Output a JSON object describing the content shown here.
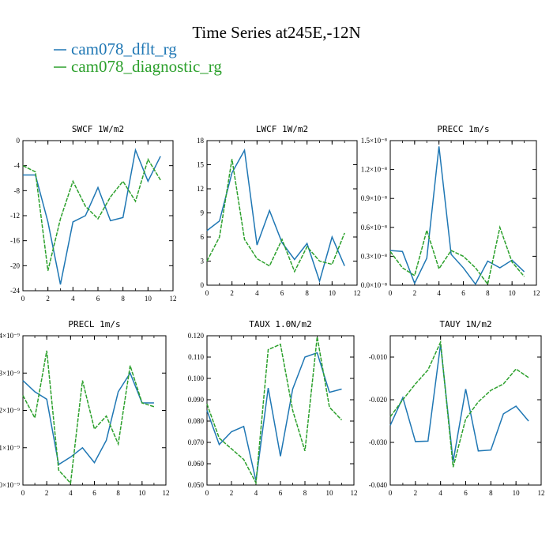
{
  "figure": {
    "title": "Time Series at245E,-12N",
    "legend": [
      {
        "label": "cam078_dflt_rg",
        "color": "#1f77b4"
      },
      {
        "label": "cam078_diagnostic_rg",
        "color": "#2ca02c"
      }
    ]
  },
  "chart_data": [
    {
      "type": "line",
      "title": "SWCF   1W/m2",
      "x": [
        0,
        1,
        2,
        3,
        4,
        5,
        6,
        7,
        8,
        9,
        10,
        11
      ],
      "xlim": [
        0,
        12
      ],
      "ylim": [
        -24,
        0
      ],
      "xticks": [
        "0",
        "2",
        "4",
        "6",
        "8",
        "10",
        "12"
      ],
      "yticks": [
        "0",
        "-4",
        "-8",
        "-12",
        "-16",
        "-20",
        "-24"
      ],
      "series": [
        {
          "name": "cam078_dflt_rg",
          "color": "#1f77b4",
          "dashed": false,
          "values": [
            -5.5,
            -5.5,
            -13,
            -23,
            -13,
            -12,
            -7.5,
            -12.8,
            -12.3,
            -1.5,
            -6.5,
            -2.5
          ]
        },
        {
          "name": "cam078_diagnostic_rg",
          "color": "#2ca02c",
          "dashed": true,
          "values": [
            -4,
            -5,
            -20.8,
            -12.5,
            -6.5,
            -10.5,
            -12.5,
            -9,
            -6.5,
            -9.7,
            -3,
            -6.3
          ]
        }
      ]
    },
    {
      "type": "line",
      "title": "LWCF   1W/m2",
      "x": [
        0,
        1,
        2,
        3,
        4,
        5,
        6,
        7,
        8,
        9,
        10,
        11
      ],
      "xlim": [
        0,
        12
      ],
      "ylim": [
        0,
        18
      ],
      "xticks": [
        "0",
        "2",
        "4",
        "6",
        "8",
        "10",
        "12"
      ],
      "yticks": [
        "0",
        "3",
        "6",
        "9",
        "12",
        "15",
        "18"
      ],
      "series": [
        {
          "name": "cam078_dflt_rg",
          "color": "#1f77b4",
          "dashed": false,
          "values": [
            6.8,
            8,
            14,
            16.8,
            5,
            9.3,
            5.3,
            3.2,
            5.2,
            0.5,
            6,
            2.4
          ]
        },
        {
          "name": "cam078_diagnostic_rg",
          "color": "#2ca02c",
          "dashed": true,
          "values": [
            3,
            6,
            15.7,
            5.7,
            3.3,
            2.4,
            5.7,
            1.7,
            4.8,
            3,
            2.6,
            6.5
          ]
        }
      ]
    },
    {
      "type": "line",
      "title": "PRECC   1m/s",
      "x": [
        0,
        1,
        2,
        3,
        4,
        5,
        6,
        7,
        8,
        9,
        10,
        11
      ],
      "xlim": [
        0,
        12
      ],
      "ylim": [
        0,
        1.5
      ],
      "yscale_label": "×10⁻⁸",
      "xticks": [
        "0",
        "2",
        "4",
        "6",
        "8",
        "10",
        "12"
      ],
      "yticks": [
        "0.0×10⁻⁸",
        "0.3×10⁻⁸",
        "0.6×10⁻⁸",
        "0.9×10⁻⁸",
        "1.2×10⁻⁸",
        "1.5×10⁻⁸"
      ],
      "series": [
        {
          "name": "cam078_dflt_rg",
          "color": "#1f77b4",
          "dashed": false,
          "values": [
            0.36,
            0.35,
            0.02,
            0.28,
            1.44,
            0.32,
            0.18,
            0.01,
            0.25,
            0.18,
            0.26,
            0.14
          ]
        },
        {
          "name": "cam078_diagnostic_rg",
          "color": "#2ca02c",
          "dashed": true,
          "values": [
            0.35,
            0.18,
            0.1,
            0.57,
            0.17,
            0.36,
            0.3,
            0.18,
            0.01,
            0.6,
            0.24,
            0.09
          ]
        }
      ]
    },
    {
      "type": "line",
      "title": "PRECL   1m/s",
      "x": [
        0,
        1,
        2,
        3,
        4,
        5,
        6,
        7,
        8,
        9,
        10,
        11
      ],
      "xlim": [
        0,
        12
      ],
      "ylim": [
        0,
        4
      ],
      "xticks": [
        "0",
        "2",
        "4",
        "6",
        "8",
        "10",
        "12"
      ],
      "yticks": [
        "0×10⁻⁹",
        "1×10⁻⁹",
        "2×10⁻⁹",
        "3×10⁻⁹",
        "4×10⁻⁹"
      ],
      "series": [
        {
          "name": "cam078_dflt_rg",
          "color": "#1f77b4",
          "dashed": false,
          "values": [
            2.8,
            2.5,
            2.3,
            0.55,
            0.75,
            1.0,
            0.6,
            1.2,
            2.5,
            3.0,
            2.2,
            2.2
          ]
        },
        {
          "name": "cam078_diagnostic_rg",
          "color": "#2ca02c",
          "dashed": true,
          "values": [
            2.4,
            1.8,
            3.6,
            0.4,
            0.05,
            2.8,
            1.5,
            1.85,
            1.1,
            3.2,
            2.2,
            2.1
          ]
        }
      ]
    },
    {
      "type": "line",
      "title": "TAUX   1.0N/m2",
      "x": [
        0,
        1,
        2,
        3,
        4,
        5,
        6,
        7,
        8,
        9,
        10,
        11
      ],
      "xlim": [
        0,
        12
      ],
      "ylim": [
        0.05,
        0.12
      ],
      "xticks": [
        "0",
        "2",
        "4",
        "6",
        "8",
        "10",
        "12"
      ],
      "yticks": [
        "0.050",
        "0.060",
        "0.070",
        "0.080",
        "0.090",
        "0.100",
        "0.110",
        "0.120"
      ],
      "series": [
        {
          "name": "cam078_dflt_rg",
          "color": "#1f77b4",
          "dashed": false,
          "values": [
            0.085,
            0.069,
            0.075,
            0.0775,
            0.052,
            0.0955,
            0.0635,
            0.095,
            0.11,
            0.112,
            0.0935,
            0.095
          ]
        },
        {
          "name": "cam078_diagnostic_rg",
          "color": "#2ca02c",
          "dashed": true,
          "values": [
            0.088,
            0.072,
            0.067,
            0.062,
            0.051,
            0.1135,
            0.116,
            0.085,
            0.066,
            0.1195,
            0.0865,
            0.0805
          ]
        }
      ]
    },
    {
      "type": "line",
      "title": "TAUY   1N/m2",
      "x": [
        0,
        1,
        2,
        3,
        4,
        5,
        6,
        7,
        8,
        9,
        10,
        11
      ],
      "xlim": [
        0,
        12
      ],
      "ylim": [
        -0.04,
        -0.005
      ],
      "xticks": [
        "0",
        "2",
        "4",
        "6",
        "8",
        "10",
        "12"
      ],
      "yticks": [
        "-0.010",
        "-0.020",
        "-0.030",
        "-0.040"
      ],
      "series": [
        {
          "name": "cam078_dflt_rg",
          "color": "#1f77b4",
          "dashed": false,
          "values": [
            -0.026,
            -0.0195,
            -0.0298,
            -0.0297,
            -0.007,
            -0.0345,
            -0.0175,
            -0.032,
            -0.0318,
            -0.0233,
            -0.0215,
            -0.025
          ]
        },
        {
          "name": "cam078_diagnostic_rg",
          "color": "#2ca02c",
          "dashed": true,
          "values": [
            -0.024,
            -0.02,
            -0.0163,
            -0.013,
            -0.0065,
            -0.0358,
            -0.0245,
            -0.0205,
            -0.0178,
            -0.0163,
            -0.0128,
            -0.0148
          ]
        }
      ]
    }
  ]
}
